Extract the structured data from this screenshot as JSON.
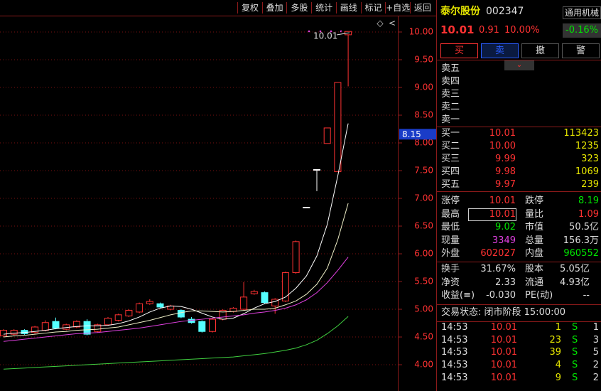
{
  "toolbar": [
    "复权",
    "叠加",
    "多股",
    "统计",
    "画线",
    "标记",
    "+自选",
    "返回"
  ],
  "chart_data": {
    "type": "candlestick",
    "open": [
      4.52,
      4.55,
      4.62,
      4.58,
      4.62,
      4.78,
      4.64,
      4.68,
      4.78,
      4.6,
      4.72,
      4.8,
      4.88,
      4.95,
      5.1,
      5.1,
      5.0,
      4.98,
      4.82,
      4.78,
      4.6,
      4.82,
      4.96,
      5.0,
      5.28,
      5.3,
      5.06,
      5.15,
      5.66,
      6.84,
      7.52,
      7.99,
      7.48,
      9.95
    ],
    "close": [
      4.62,
      4.62,
      4.56,
      4.68,
      4.76,
      4.66,
      4.72,
      4.78,
      4.55,
      4.72,
      4.84,
      4.9,
      4.98,
      5.1,
      5.14,
      5.04,
      5.06,
      4.86,
      4.76,
      4.6,
      4.82,
      4.98,
      5.02,
      5.22,
      5.32,
      5.12,
      5.18,
      5.66,
      6.22,
      6.84,
      7.52,
      8.27,
      9.09,
      10.01
    ],
    "high": [
      4.64,
      4.64,
      4.64,
      4.7,
      4.8,
      4.85,
      4.74,
      4.8,
      4.82,
      4.74,
      4.86,
      4.92,
      5.0,
      5.12,
      5.18,
      5.12,
      5.08,
      5.0,
      4.86,
      4.8,
      4.84,
      5.0,
      5.04,
      5.49,
      5.35,
      5.32,
      5.2,
      5.68,
      6.24,
      6.84,
      7.52,
      8.27,
      9.09,
      10.01
    ],
    "low": [
      4.5,
      4.53,
      4.54,
      4.56,
      4.6,
      4.64,
      4.62,
      4.66,
      4.53,
      4.58,
      4.7,
      4.78,
      4.86,
      4.93,
      5.08,
      5.02,
      4.98,
      4.84,
      4.74,
      4.58,
      4.58,
      4.8,
      4.94,
      4.98,
      5.26,
      5.1,
      4.92,
      5.13,
      5.64,
      6.84,
      7.13,
      7.99,
      7.48,
      9.02
    ],
    "lines": [
      {
        "color": "#ffffff",
        "values": [
          4.55,
          4.57,
          4.58,
          4.6,
          4.62,
          4.65,
          4.67,
          4.69,
          4.7,
          4.7,
          4.71,
          4.74,
          4.79,
          4.86,
          4.95,
          5.02,
          5.06,
          5.05,
          5.0,
          4.93,
          4.86,
          4.82,
          4.84,
          4.92,
          5.02,
          5.1,
          5.14,
          5.22,
          5.38,
          5.6,
          5.96,
          6.53,
          7.4,
          8.35
        ]
      },
      {
        "color": "#f0f0c8",
        "values": [
          4.5,
          4.52,
          4.53,
          4.55,
          4.57,
          4.59,
          4.6,
          4.62,
          4.63,
          4.64,
          4.66,
          4.68,
          4.72,
          4.76,
          4.8,
          4.85,
          4.9,
          4.94,
          4.97,
          4.97,
          4.96,
          4.95,
          4.96,
          4.98,
          5.0,
          5.0,
          5.02,
          5.08,
          5.15,
          5.27,
          5.45,
          5.74,
          6.25,
          6.91
        ]
      },
      {
        "color": "#e040e0",
        "values": [
          4.42,
          4.44,
          4.46,
          4.48,
          4.5,
          4.52,
          4.54,
          4.56,
          4.57,
          4.58,
          4.6,
          4.62,
          4.64,
          4.66,
          4.69,
          4.72,
          4.75,
          4.78,
          4.8,
          4.82,
          4.84,
          4.86,
          4.88,
          4.9,
          4.93,
          4.95,
          4.98,
          5.02,
          5.08,
          5.17,
          5.3,
          5.48,
          5.7,
          5.94
        ]
      },
      {
        "color": "#40d040",
        "values": [
          3.92,
          3.93,
          3.94,
          3.95,
          3.96,
          3.97,
          3.98,
          3.99,
          4.0,
          4.01,
          4.02,
          4.03,
          4.04,
          4.05,
          4.06,
          4.07,
          4.08,
          4.09,
          4.1,
          4.11,
          4.12,
          4.13,
          4.14,
          4.16,
          4.18,
          4.2,
          4.23,
          4.26,
          4.3,
          4.36,
          4.44,
          4.56,
          4.7,
          4.87
        ]
      }
    ],
    "ylim": [
      3.526,
      10.577
    ],
    "yticks": [
      {
        "value": 4,
        "label": "4.00"
      },
      {
        "value": 4.5,
        "label": "4.50"
      },
      {
        "value": 5,
        "label": "5.00"
      },
      {
        "value": 5.5,
        "label": "5.50"
      },
      {
        "value": 6,
        "label": "6.00"
      },
      {
        "value": 6.5,
        "label": "6.50"
      },
      {
        "value": 7,
        "label": "7.00"
      },
      {
        "value": 7.5,
        "label": "7.50"
      },
      {
        "value": 8,
        "label": "8.00"
      },
      {
        "value": 8.5,
        "label": "8.50"
      },
      {
        "value": 9,
        "label": "9.00"
      },
      {
        "value": 9.5,
        "label": "9.50"
      },
      {
        "value": 10,
        "label": "10.00"
      }
    ],
    "grid": true,
    "up_color": "#ff3232",
    "down_color": "#54ffff",
    "annotation": "10.01",
    "price_marker": 8.15
  },
  "quote": {
    "name": "泰尔股份",
    "code": "002347",
    "industry": "通用机械",
    "price": "10.01",
    "change": "0.91",
    "change_pct": "10.00%",
    "industry_change": "-0.16%"
  },
  "actions": [
    "买",
    "卖",
    "撤",
    "警"
  ],
  "asks": [
    "卖五",
    "卖四",
    "卖三",
    "卖二",
    "卖一"
  ],
  "bids": [
    [
      "买一",
      "10.01",
      "113423"
    ],
    [
      "买二",
      "10.00",
      "1235"
    ],
    [
      "买三",
      "9.99",
      "323"
    ],
    [
      "买四",
      "9.98",
      "1069"
    ],
    [
      "买五",
      "9.97",
      "239"
    ]
  ],
  "stats": [
    [
      "涨停",
      "10.01",
      "跌停",
      "8.19"
    ],
    [
      "最高",
      "10.01",
      "量比",
      "1.09"
    ],
    [
      "最低",
      "9.02",
      "市值",
      "50.5亿"
    ],
    [
      "现量",
      "3349",
      "总量",
      "156.3万"
    ],
    [
      "外盘",
      "602027",
      "内盘",
      "960552"
    ]
  ],
  "stats2": [
    [
      "换手",
      "31.67%",
      "股本",
      "5.05亿"
    ],
    [
      "净资",
      "2.33",
      "流通",
      "4.93亿"
    ],
    [
      "收益(≡)",
      "-0.030",
      "PE(动)",
      "--"
    ]
  ],
  "status": "交易状态: 闭市阶段 15:00:00",
  "ticks": [
    [
      "14:53",
      "10.01",
      "1",
      "S",
      "1"
    ],
    [
      "14:53",
      "10.01",
      "23",
      "S",
      "3"
    ],
    [
      "14:53",
      "10.01",
      "39",
      "S",
      "5"
    ],
    [
      "14:53",
      "10.01",
      "4",
      "S",
      "2"
    ],
    [
      "14:53",
      "10.01",
      "9",
      "S",
      "2"
    ]
  ]
}
